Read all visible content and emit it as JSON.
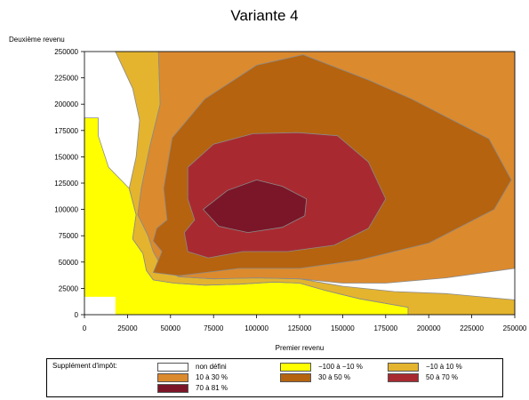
{
  "chart_data": {
    "type": "contour",
    "title": "Variante 4",
    "xlabel": "Premier revenu",
    "ylabel": "Deuxième revenu",
    "xlim": [
      0,
      250000
    ],
    "ylim": [
      0,
      250000
    ],
    "xticks": [
      "0",
      "25000",
      "50000",
      "75000",
      "100000",
      "125000",
      "150000",
      "175000",
      "200000",
      "225000",
      "250000"
    ],
    "yticks": [
      "0",
      "25000",
      "50000",
      "75000",
      "100000",
      "125000",
      "150000",
      "175000",
      "200000",
      "225000",
      "250000"
    ],
    "legend_title": "Supplément d'impôt:",
    "levels": [
      {
        "label": "non défini",
        "color": "#ffffff"
      },
      {
        "label": "−100 à −10 %",
        "color": "#ffff00"
      },
      {
        "label": "−10 à 10 %",
        "color": "#e4b42e"
      },
      {
        "label": "10 à 30 %",
        "color": "#dc8a2e"
      },
      {
        "label": "30 à 50 %",
        "color": "#b5630f"
      },
      {
        "label": "50 à 70 %",
        "color": "#a82a30"
      },
      {
        "label": "70 à 81 %",
        "color": "#7a1628"
      }
    ],
    "regions": [
      {
        "level": 1,
        "points": [
          [
            0,
            0
          ],
          [
            0,
            187000
          ],
          [
            8000,
            187000
          ],
          [
            8000,
            170000
          ],
          [
            14000,
            140000
          ],
          [
            26000,
            120000
          ],
          [
            30000,
            95000
          ],
          [
            28000,
            72000
          ],
          [
            34000,
            58000
          ],
          [
            36000,
            42000
          ],
          [
            40000,
            33000
          ],
          [
            52000,
            30000
          ],
          [
            70000,
            28000
          ],
          [
            90000,
            29000
          ],
          [
            110000,
            31000
          ],
          [
            125000,
            30000
          ],
          [
            140000,
            23000
          ],
          [
            160000,
            15000
          ],
          [
            188000,
            7000
          ],
          [
            188000,
            0
          ]
        ]
      },
      {
        "level": 2,
        "points": [
          [
            18000,
            250000
          ],
          [
            43000,
            250000
          ],
          [
            44000,
            200000
          ],
          [
            38000,
            160000
          ],
          [
            33000,
            120000
          ],
          [
            31000,
            95000
          ],
          [
            37000,
            75000
          ],
          [
            40000,
            60000
          ],
          [
            46000,
            42000
          ],
          [
            55000,
            36000
          ],
          [
            75000,
            34000
          ],
          [
            100000,
            35000
          ],
          [
            125000,
            34000
          ],
          [
            150000,
            27000
          ],
          [
            180000,
            22000
          ],
          [
            210000,
            20000
          ],
          [
            250000,
            14000
          ],
          [
            250000,
            0
          ],
          [
            188000,
            0
          ],
          [
            188000,
            7000
          ],
          [
            160000,
            15000
          ],
          [
            140000,
            23000
          ],
          [
            125000,
            30000
          ],
          [
            110000,
            31000
          ],
          [
            90000,
            29000
          ],
          [
            70000,
            28000
          ],
          [
            52000,
            30000
          ],
          [
            40000,
            33000
          ],
          [
            36000,
            42000
          ],
          [
            34000,
            58000
          ],
          [
            28000,
            72000
          ],
          [
            30000,
            95000
          ],
          [
            26000,
            120000
          ],
          [
            30000,
            150000
          ],
          [
            32000,
            185000
          ],
          [
            28000,
            215000
          ]
        ]
      },
      {
        "level": 3,
        "points": [
          [
            43000,
            250000
          ],
          [
            250000,
            250000
          ],
          [
            250000,
            44000
          ],
          [
            210000,
            35000
          ],
          [
            175000,
            30000
          ],
          [
            150000,
            30000
          ],
          [
            125000,
            34000
          ],
          [
            100000,
            35000
          ],
          [
            75000,
            34000
          ],
          [
            55000,
            36000
          ],
          [
            46000,
            42000
          ],
          [
            40000,
            60000
          ],
          [
            37000,
            75000
          ],
          [
            31000,
            95000
          ],
          [
            33000,
            120000
          ],
          [
            38000,
            160000
          ],
          [
            44000,
            200000
          ]
        ]
      },
      {
        "level": 4,
        "points": [
          [
            51000,
            168000
          ],
          [
            70000,
            205000
          ],
          [
            100000,
            237000
          ],
          [
            127000,
            247000
          ],
          [
            165000,
            223000
          ],
          [
            190000,
            205000
          ],
          [
            235000,
            167000
          ],
          [
            248000,
            128000
          ],
          [
            238000,
            100000
          ],
          [
            200000,
            68000
          ],
          [
            160000,
            52000
          ],
          [
            125000,
            44000
          ],
          [
            90000,
            44000
          ],
          [
            70000,
            40000
          ],
          [
            55000,
            37000
          ],
          [
            40000,
            40000
          ],
          [
            45000,
            60000
          ],
          [
            40000,
            70000
          ],
          [
            42000,
            82000
          ],
          [
            48000,
            90000
          ],
          [
            46000,
            120000
          ]
        ]
      },
      {
        "level": 5,
        "points": [
          [
            60000,
            140000
          ],
          [
            75000,
            162000
          ],
          [
            98000,
            172000
          ],
          [
            124000,
            173000
          ],
          [
            147000,
            170000
          ],
          [
            165000,
            145000
          ],
          [
            175000,
            110000
          ],
          [
            165000,
            82000
          ],
          [
            145000,
            66000
          ],
          [
            118000,
            60000
          ],
          [
            92000,
            60000
          ],
          [
            72000,
            54000
          ],
          [
            60000,
            60000
          ],
          [
            58000,
            78000
          ],
          [
            64000,
            90000
          ],
          [
            60000,
            110000
          ]
        ]
      },
      {
        "level": 6,
        "points": [
          [
            69000,
            100000
          ],
          [
            83000,
            118000
          ],
          [
            100000,
            128000
          ],
          [
            115000,
            122000
          ],
          [
            129000,
            110000
          ],
          [
            128000,
            94000
          ],
          [
            115000,
            83000
          ],
          [
            95000,
            78000
          ],
          [
            78000,
            84000
          ]
        ]
      },
      {
        "level": 0,
        "points": [
          [
            0,
            0
          ],
          [
            0,
            17000
          ],
          [
            18000,
            17000
          ],
          [
            18000,
            0
          ]
        ]
      }
    ]
  }
}
